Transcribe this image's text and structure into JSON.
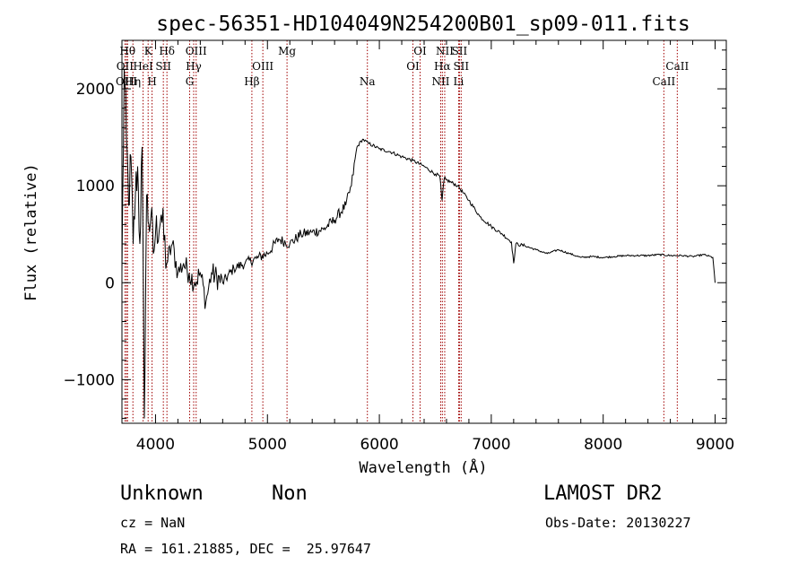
{
  "chart_data": {
    "type": "line",
    "title": "spec-56351-HD104049N254200B01_sp09-011.fits",
    "xlabel": "Wavelength (Å)",
    "ylabel": "Flux (relative)",
    "xlim": [
      3700,
      9100
    ],
    "ylim": [
      -1450,
      2500
    ],
    "xticks": [
      4000,
      5000,
      6000,
      7000,
      8000,
      9000
    ],
    "yticks": [
      -1000,
      0,
      1000,
      2000
    ],
    "grid": false,
    "series": [
      {
        "name": "flux",
        "x": [
          3700,
          3720,
          3740,
          3760,
          3780,
          3800,
          3820,
          3840,
          3860,
          3880,
          3900,
          3920,
          3940,
          3960,
          3980,
          4000,
          4050,
          4100,
          4150,
          4200,
          4250,
          4300,
          4350,
          4400,
          4450,
          4500,
          4600,
          4700,
          4800,
          4900,
          5000,
          5100,
          5200,
          5300,
          5400,
          5500,
          5600,
          5700,
          5750,
          5800,
          5850,
          5900,
          6000,
          6100,
          6200,
          6300,
          6400,
          6500,
          6540,
          6560,
          6580,
          6600,
          6700,
          6800,
          6900,
          7000,
          7100,
          7180,
          7200,
          7220,
          7300,
          7400,
          7500,
          7600,
          7700,
          7800,
          7900,
          8000,
          8100,
          8200,
          8300,
          8400,
          8500,
          8600,
          8700,
          8800,
          8900,
          8980,
          9000
        ],
        "y": [
          100,
          2200,
          1500,
          800,
          1300,
          400,
          900,
          1200,
          400,
          1400,
          -1400,
          900,
          600,
          700,
          300,
          500,
          700,
          200,
          400,
          100,
          200,
          100,
          0,
          100,
          -200,
          100,
          0,
          150,
          200,
          250,
          300,
          450,
          400,
          500,
          520,
          550,
          650,
          800,
          1000,
          1400,
          1480,
          1440,
          1380,
          1350,
          1300,
          1260,
          1200,
          1120,
          1100,
          850,
          1080,
          1060,
          1000,
          850,
          680,
          580,
          500,
          420,
          200,
          400,
          380,
          340,
          300,
          340,
          300,
          260,
          270,
          260,
          270,
          280,
          280,
          280,
          290,
          280,
          280,
          270,
          290,
          260,
          0
        ]
      }
    ],
    "emission_lines": [
      {
        "label": "OII",
        "wavelength": 3727,
        "row": 2
      },
      {
        "label": "OIII",
        "wavelength": 3740,
        "row": 3
      },
      {
        "label": "Hθ",
        "wavelength": 3750,
        "row": 1
      },
      {
        "label": "Hη",
        "wavelength": 3798,
        "row": 3
      },
      {
        "label": "K",
        "wavelength": 3934,
        "row": 1
      },
      {
        "label": "HeI",
        "wavelength": 3889,
        "row": 2
      },
      {
        "label": "H",
        "wavelength": 3969,
        "row": 3
      },
      {
        "label": "Hδ",
        "wavelength": 4102,
        "row": 1
      },
      {
        "label": "SII",
        "wavelength": 4070,
        "row": 2
      },
      {
        "label": "OIII",
        "wavelength": 4363,
        "row": 1
      },
      {
        "label": "Hγ",
        "wavelength": 4341,
        "row": 2
      },
      {
        "label": "G",
        "wavelength": 4305,
        "row": 3
      },
      {
        "label": "OIII",
        "wavelength": 4959,
        "row": 2
      },
      {
        "label": "Hβ",
        "wavelength": 4861,
        "row": 3
      },
      {
        "label": "Mg",
        "wavelength": 5175,
        "row": 1
      },
      {
        "label": "Na",
        "wavelength": 5893,
        "row": 3
      },
      {
        "label": "OI",
        "wavelength": 6364,
        "row": 1
      },
      {
        "label": "OI",
        "wavelength": 6300,
        "row": 2
      },
      {
        "label": "NII",
        "wavelength": 6584,
        "row": 1
      },
      {
        "label": "Hα",
        "wavelength": 6563,
        "row": 2
      },
      {
        "label": "NII",
        "wavelength": 6548,
        "row": 3
      },
      {
        "label": "SII",
        "wavelength": 6716,
        "row": 1
      },
      {
        "label": "SII",
        "wavelength": 6731,
        "row": 2
      },
      {
        "label": "Li",
        "wavelength": 6708,
        "row": 3
      },
      {
        "label": "CaII",
        "wavelength": 8662,
        "row": 2
      },
      {
        "label": "CaII",
        "wavelength": 8542,
        "row": 3
      }
    ]
  },
  "info": {
    "classification": "Unknown",
    "subclass": "Non",
    "survey": "LAMOST DR2",
    "cz": "cz = NaN",
    "obs_date": "Obs-Date: 20130227",
    "coords": "RA = 161.21885, DEC =  25.97647"
  },
  "colors": {
    "line_marker": "#a00000",
    "spectrum": "#000000"
  }
}
